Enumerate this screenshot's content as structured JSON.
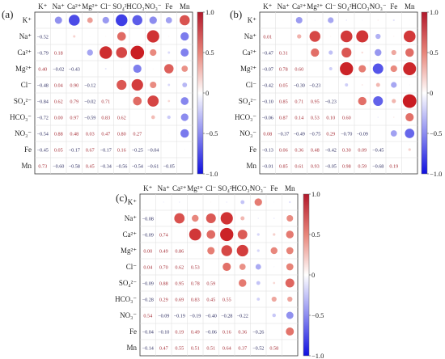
{
  "variables": [
    "K⁺",
    "Na⁺",
    "Ca²⁺",
    "Mg²⁺",
    "Cl⁻",
    "SO₄²⁻",
    "HCO₃⁻",
    "NO₃⁻",
    "Fe",
    "Mn"
  ],
  "colorbar": {
    "max_label": "1.0",
    "ticks": [
      "1.0",
      "0.5",
      "0",
      "−0.5",
      "−1.0"
    ]
  },
  "chart_data": [
    {
      "type": "heatmap",
      "panel_label": "(a)",
      "title": "",
      "x": [
        "K⁺",
        "Na⁺",
        "Ca²⁺",
        "Mg²⁺",
        "Cl⁻",
        "SO₄²⁻",
        "HCO₃⁻",
        "NO₃⁻",
        "Fe",
        "Mn"
      ],
      "y": [
        "K⁺",
        "Na⁺",
        "Ca²⁺",
        "Mg²⁺",
        "Cl⁻",
        "SO₄²⁻",
        "HCO₃⁻",
        "NO₃⁻",
        "Fe",
        "Mn"
      ],
      "values": [
        [
          1,
          -0.52,
          -0.79,
          0.4,
          -0.48,
          -0.84,
          -0.72,
          -0.54,
          -0.45,
          0.73
        ],
        [
          -0.52,
          1,
          0.18,
          -0.02,
          0.04,
          0.62,
          0.0,
          0.88,
          0.05,
          -0.6
        ],
        [
          -0.79,
          0.18,
          1,
          -0.43,
          0.9,
          0.79,
          0.97,
          0.48,
          -0.17,
          -0.58
        ],
        [
          0.4,
          -0.02,
          -0.43,
          1,
          -0.12,
          -0.02,
          -0.59,
          0.03,
          0.67,
          0.45
        ],
        [
          -0.48,
          0.04,
          0.9,
          -0.12,
          1,
          0.71,
          0.83,
          0.47,
          -0.17,
          -0.34
        ],
        [
          -0.84,
          0.62,
          0.79,
          -0.02,
          0.71,
          1,
          0.62,
          0.8,
          0.16,
          -0.56
        ],
        [
          -0.72,
          0.0,
          0.97,
          -0.59,
          0.83,
          0.62,
          1,
          0.27,
          -0.25,
          -0.54
        ],
        [
          -0.54,
          0.88,
          0.48,
          0.03,
          0.47,
          0.8,
          0.27,
          1,
          -0.04,
          -0.61
        ],
        [
          -0.45,
          0.05,
          -0.17,
          0.67,
          -0.17,
          0.16,
          -0.25,
          -0.04,
          1,
          -0.05
        ],
        [
          0.73,
          -0.6,
          -0.58,
          0.45,
          -0.34,
          -0.56,
          -0.54,
          -0.61,
          -0.05,
          1
        ]
      ],
      "value_range": [
        -1,
        1
      ]
    },
    {
      "type": "heatmap",
      "panel_label": "(b)",
      "title": "",
      "x": [
        "K⁺",
        "Na⁺",
        "Ca²⁺",
        "Mg²⁺",
        "Cl⁻",
        "SO₄²⁻",
        "HCO₃⁻",
        "NO₃⁻",
        "Fe",
        "Mn"
      ],
      "y": [
        "K⁺",
        "Na⁺",
        "Ca²⁺",
        "Mg²⁺",
        "Cl⁻",
        "SO₄²⁻",
        "HCO₃⁻",
        "NO₃⁻",
        "Fe",
        "Mn"
      ],
      "values": [
        [
          1,
          0.01,
          -0.47,
          -0.07,
          -0.42,
          -0.1,
          -0.06,
          0.08,
          -0.13,
          -0.01
        ],
        [
          0.01,
          1,
          0.31,
          0.78,
          0.05,
          0.85,
          0.87,
          -0.37,
          0.06,
          0.85
        ],
        [
          -0.47,
          0.31,
          1,
          0.6,
          -0.3,
          0.71,
          0.14,
          -0.49,
          0.36,
          0.61
        ],
        [
          -0.07,
          0.78,
          0.6,
          1,
          -0.23,
          0.95,
          0.53,
          -0.75,
          0.48,
          0.93
        ],
        [
          -0.42,
          0.05,
          -0.3,
          -0.23,
          1,
          -0.23,
          0.1,
          0.29,
          -0.42,
          -0.05
        ],
        [
          -0.1,
          0.85,
          0.71,
          0.95,
          -0.23,
          1,
          0.6,
          -0.7,
          0.3,
          0.98
        ],
        [
          -0.06,
          0.87,
          0.14,
          0.53,
          0.1,
          0.6,
          1,
          -0.09,
          0.09,
          0.59
        ],
        [
          0.08,
          -0.37,
          -0.49,
          -0.75,
          0.29,
          -0.7,
          -0.09,
          1,
          -0.45,
          -0.68
        ],
        [
          -0.13,
          0.06,
          0.36,
          0.48,
          -0.42,
          0.3,
          0.09,
          -0.45,
          1,
          0.19
        ],
        [
          -0.01,
          0.85,
          0.61,
          0.93,
          -0.05,
          0.98,
          0.59,
          -0.68,
          0.19,
          1
        ]
      ],
      "value_range": [
        -1,
        1
      ]
    },
    {
      "type": "heatmap",
      "panel_label": "(c)",
      "title": "",
      "x": [
        "K⁺",
        "Na⁺",
        "Ca²⁺",
        "Mg²⁺",
        "Cl⁻",
        "SO₄²⁻",
        "HCO₃⁻",
        "NO₃⁻",
        "Fe",
        "Mn"
      ],
      "y": [
        "K⁺",
        "Na⁺",
        "Ca²⁺",
        "Mg²⁺",
        "Cl⁻",
        "SO₄²⁻",
        "HCO₃⁻",
        "NO₃⁻",
        "Fe",
        "Mn"
      ],
      "values": [
        [
          1,
          -0.08,
          -0.09,
          0.0,
          0.04,
          -0.09,
          -0.28,
          0.54,
          -0.04,
          -0.14
        ],
        [
          -0.08,
          1,
          0.74,
          0.49,
          0.7,
          0.88,
          0.29,
          -0.09,
          -0.1,
          0.47
        ],
        [
          -0.09,
          0.74,
          1,
          0.86,
          0.62,
          0.95,
          0.69,
          -0.19,
          0.19,
          0.55
        ],
        [
          0.0,
          0.49,
          0.86,
          1,
          0.53,
          0.78,
          0.83,
          -0.19,
          0.49,
          0.51
        ],
        [
          0.04,
          0.7,
          0.62,
          0.53,
          1,
          0.59,
          0.45,
          -0.4,
          -0.06,
          0.51
        ],
        [
          -0.09,
          0.88,
          0.95,
          0.78,
          0.59,
          1,
          0.55,
          -0.28,
          0.16,
          0.64
        ],
        [
          -0.28,
          0.29,
          0.69,
          0.83,
          0.45,
          0.55,
          1,
          -0.22,
          0.36,
          0.37
        ],
        [
          0.54,
          -0.09,
          -0.19,
          -0.19,
          -0.4,
          -0.28,
          -0.22,
          1,
          -0.26,
          -0.52
        ],
        [
          -0.04,
          -0.1,
          0.19,
          0.49,
          -0.06,
          0.16,
          0.36,
          -0.26,
          1,
          0.58
        ],
        [
          -0.14,
          0.47,
          0.55,
          0.51,
          0.51,
          0.64,
          0.37,
          -0.52,
          0.58,
          1
        ]
      ],
      "value_range": [
        -1,
        1
      ]
    }
  ]
}
